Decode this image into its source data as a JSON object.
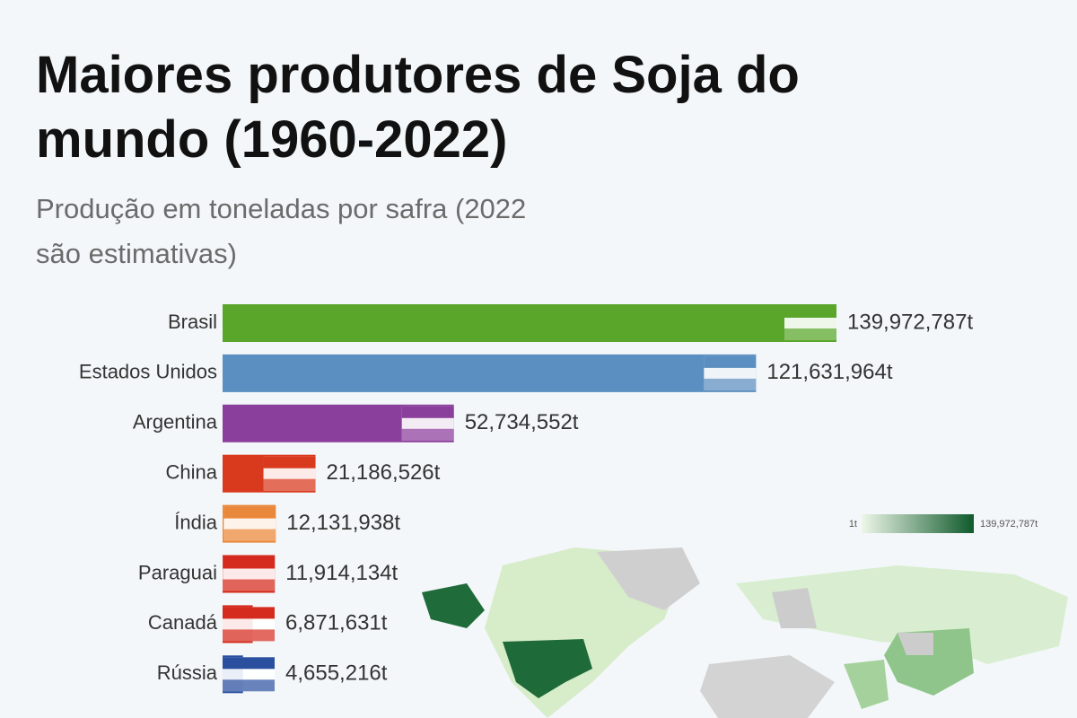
{
  "chart_data": {
    "type": "bar",
    "orientation": "horizontal",
    "title": "Maiores produtores de Soja do mundo (1960-2022)",
    "subtitle": "Produção em toneladas por safra (2022 são estimativas)",
    "categories": [
      "Brasil",
      "Estados Unidos",
      "Argentina",
      "China",
      "Índia",
      "Paraguai",
      "Canadá",
      "Rússia"
    ],
    "values": [
      139972787,
      121631964,
      52734552,
      21186526,
      12131938,
      11914134,
      6871631,
      4655216
    ],
    "value_labels": [
      "139,972,787t",
      "121,631,964t",
      "52,734,552t",
      "21,186,526t",
      "12,131,938t",
      "11,914,134t",
      "6,871,631t",
      "4,655,216t"
    ],
    "colors": [
      "#5aa62b",
      "#5c8fc1",
      "#8b3f9c",
      "#d9391d",
      "#e9883a",
      "#d52b1e",
      "#d52b1e",
      "#2a4f9f"
    ],
    "legend": {
      "min_label": "1t",
      "max_label": "139,972,787t",
      "colors": [
        "#eef7e8",
        "#0f5a2c"
      ]
    }
  }
}
